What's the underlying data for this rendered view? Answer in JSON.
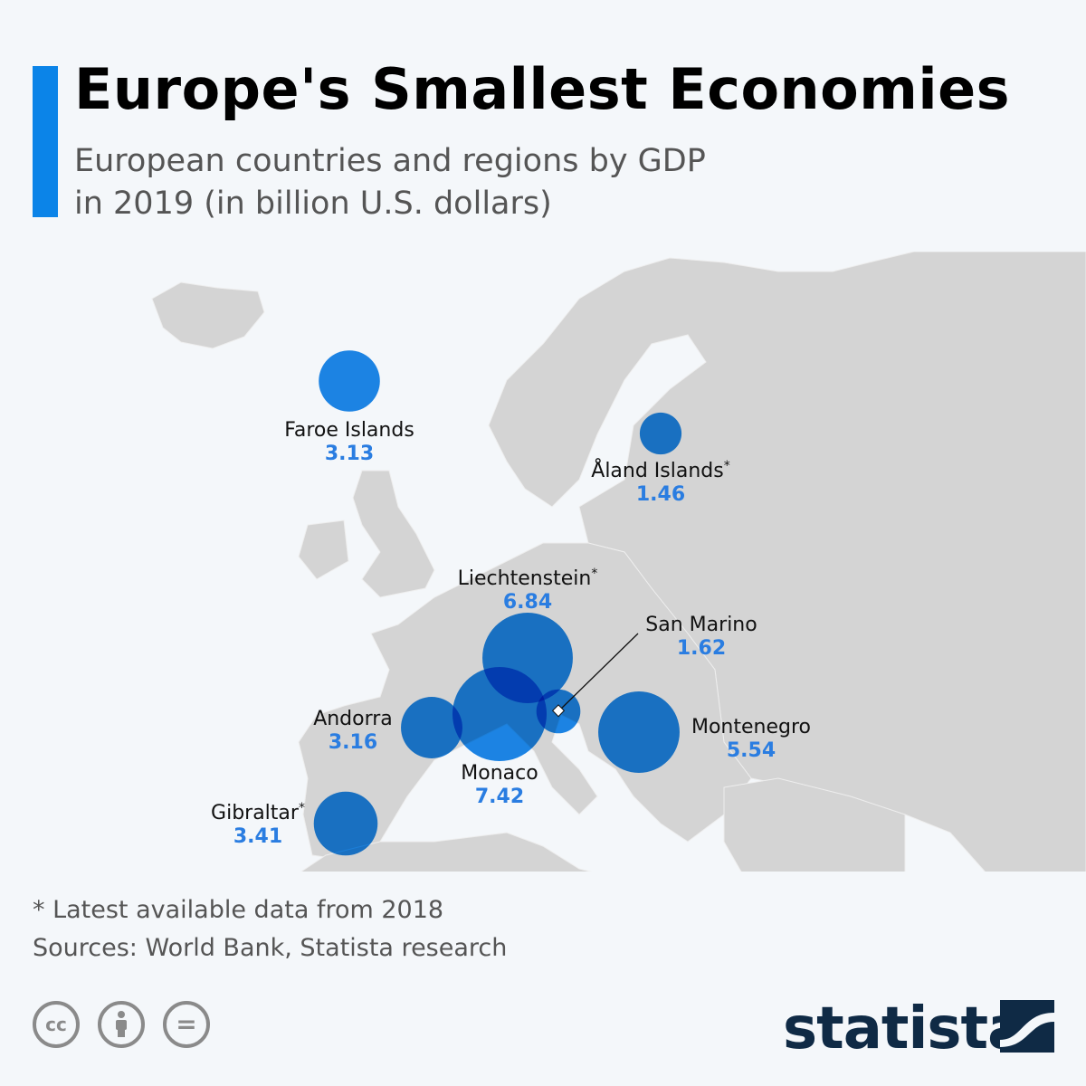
{
  "header": {
    "title": "Europe's Smallest Economies",
    "subtitle_line1": "European countries and regions by GDP",
    "subtitle_line2": "in 2019 (in billion U.S. dollars)"
  },
  "colors": {
    "accent": "#0b84e8",
    "bubble": "#0a7de6",
    "land": "#d4d4d4",
    "sea": "#f4f7fa",
    "value": "#2a7de1"
  },
  "chart_data": {
    "type": "bubble-map",
    "unit": "billion U.S. dollars",
    "year": 2019,
    "points": [
      {
        "name": "Faroe Islands",
        "value": 3.13,
        "asterisk": false,
        "value_label": "3.13"
      },
      {
        "name": "Åland Islands",
        "value": 1.46,
        "asterisk": true,
        "value_label": "1.46"
      },
      {
        "name": "Liechtenstein",
        "value": 6.84,
        "asterisk": true,
        "value_label": "6.84"
      },
      {
        "name": "San Marino",
        "value": 1.62,
        "asterisk": false,
        "value_label": "1.62"
      },
      {
        "name": "Andorra",
        "value": 3.16,
        "asterisk": false,
        "value_label": "3.16"
      },
      {
        "name": "Monaco",
        "value": 7.42,
        "asterisk": false,
        "value_label": "7.42"
      },
      {
        "name": "Montenegro",
        "value": 5.54,
        "asterisk": false,
        "value_label": "5.54"
      },
      {
        "name": "Gibraltar",
        "value": 3.41,
        "asterisk": true,
        "value_label": "3.41"
      }
    ]
  },
  "footer": {
    "note": "* Latest available data from 2018",
    "sources": "Sources: World Bank, Statista research",
    "license_icons": [
      "cc-icon",
      "attribution-icon",
      "no-derivatives-icon"
    ],
    "cc_text": "cc",
    "nd_text": "=",
    "logo": "statista"
  }
}
